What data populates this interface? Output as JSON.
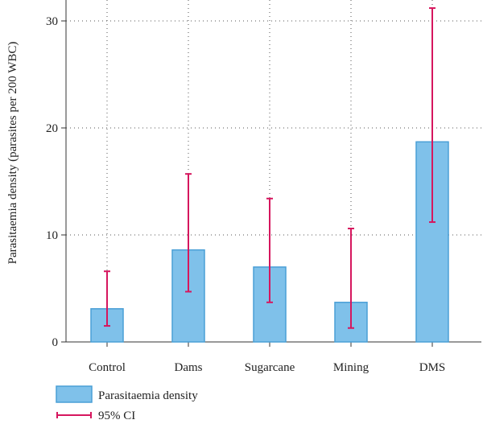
{
  "chart_data": {
    "type": "bar",
    "title": "",
    "xlabel": "",
    "ylabel": "Parasitaemia density (parasites per 200 WBC)",
    "ylim": [
      0,
      32
    ],
    "yticks": [
      0,
      10,
      20,
      30
    ],
    "grid": true,
    "legend_position": "bottom-left",
    "categories": [
      "Control",
      "Dams",
      "Sugarcane",
      "Mining",
      "DMS"
    ],
    "series": [
      {
        "name": "Parasitaemia density",
        "type": "bar",
        "values": [
          3.1,
          8.6,
          7.0,
          3.7,
          18.7
        ],
        "color": "#7fc1ea",
        "edge_color": "#4a9fd6"
      },
      {
        "name": "95% CI",
        "type": "errorbar",
        "lower": [
          1.5,
          4.7,
          3.7,
          1.3,
          11.2
        ],
        "upper": [
          6.6,
          15.7,
          13.4,
          10.6,
          31.2
        ],
        "color": "#d6165e"
      }
    ]
  }
}
